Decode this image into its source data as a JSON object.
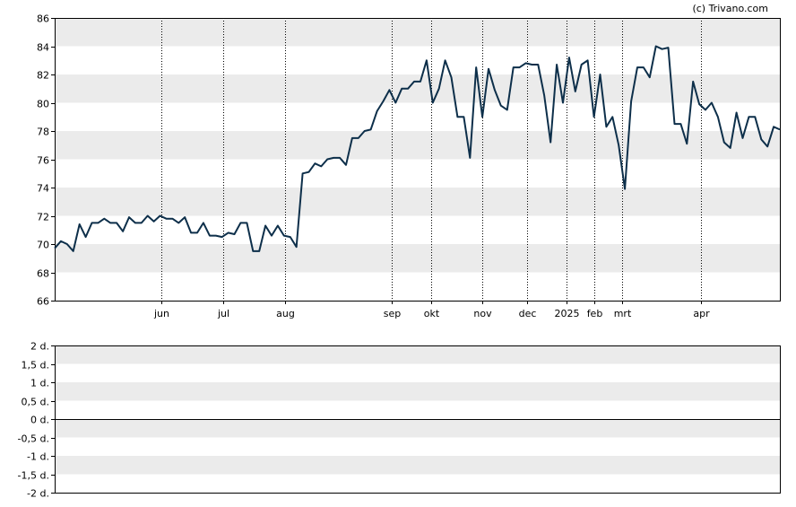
{
  "copyright": "(c) Trivano.com",
  "colors": {
    "line": "#0d2f4a",
    "band": "#ebebeb",
    "axis": "#000000",
    "gridline": "#000000"
  },
  "chart_data": [
    {
      "type": "line",
      "title": "",
      "xlabel": "",
      "ylabel": "",
      "ylim": [
        66,
        86
      ],
      "yticks": [
        "66",
        "68",
        "70",
        "72",
        "74",
        "76",
        "78",
        "80",
        "82",
        "84",
        "86"
      ],
      "ytick_values": [
        66,
        68,
        70,
        72,
        74,
        76,
        78,
        80,
        82,
        84,
        86
      ],
      "x_unit": "trading session index",
      "x_range": [
        0,
        129
      ],
      "xticks": [
        {
          "label": "jun",
          "x": 19
        },
        {
          "label": "jul",
          "x": 30
        },
        {
          "label": "aug",
          "x": 41
        },
        {
          "label": "sep",
          "x": 60
        },
        {
          "label": "okt",
          "x": 67
        },
        {
          "label": "nov",
          "x": 76
        },
        {
          "label": "dec",
          "x": 84
        },
        {
          "label": "2025",
          "x": 91
        },
        {
          "label": "feb",
          "x": 96
        },
        {
          "label": "mrt",
          "x": 101
        },
        {
          "label": "apr",
          "x": 115
        }
      ],
      "grid": "vertical dotted at month ticks, horizontal alternating bands",
      "series": [
        {
          "values": [
            69.7,
            70.2,
            70.0,
            69.5,
            71.4,
            70.5,
            71.5,
            71.5,
            71.8,
            71.5,
            71.5,
            70.9,
            71.9,
            71.5,
            71.5,
            72.0,
            71.6,
            72.0,
            71.8,
            71.8,
            71.5,
            71.9,
            70.8,
            70.8,
            71.5,
            70.6,
            70.6,
            70.5,
            70.8,
            70.7,
            71.5,
            71.5,
            69.5,
            69.5,
            71.3,
            70.6,
            71.3,
            70.6,
            70.5,
            69.8,
            75.0,
            75.1,
            75.7,
            75.5,
            76.0,
            76.1,
            76.1,
            75.6,
            77.5,
            77.5,
            78.0,
            78.1,
            79.4,
            80.1,
            80.9,
            80.0,
            81.0,
            81.0,
            81.5,
            81.5,
            83.0,
            80.0,
            81.0,
            83.0,
            81.8,
            79.0,
            79.0,
            76.1,
            82.5,
            79.0,
            82.4,
            80.9,
            79.8,
            79.5,
            82.5,
            82.5,
            82.8,
            82.7,
            82.7,
            80.5,
            77.2,
            82.7,
            80.0,
            83.2,
            80.8,
            82.7,
            83.0,
            79.0,
            82.0,
            78.3,
            79.0,
            77.0,
            73.9,
            80.1,
            82.5,
            82.5,
            81.8,
            84.0,
            83.8,
            83.9,
            78.5,
            78.5,
            77.1,
            81.5,
            79.9,
            79.5,
            80.0,
            79.0,
            77.2,
            76.8,
            79.3,
            77.5,
            79.0,
            79.0,
            77.4,
            76.9,
            78.3,
            78.1
          ]
        }
      ]
    },
    {
      "type": "line",
      "title": "",
      "xlabel": "",
      "ylabel": "",
      "ylim": [
        -2,
        2
      ],
      "yticks": [
        "2 d.",
        "1,5 d.",
        "1 d.",
        "0,5 d.",
        "0 d.",
        "-0,5 d.",
        "-1 d.",
        "-1,5 d.",
        "-2 d."
      ],
      "ytick_values": [
        2,
        1.5,
        1,
        0.5,
        0,
        -0.5,
        -1,
        -1.5,
        -2
      ],
      "grid": "horizontal alternating bands",
      "series": []
    }
  ]
}
